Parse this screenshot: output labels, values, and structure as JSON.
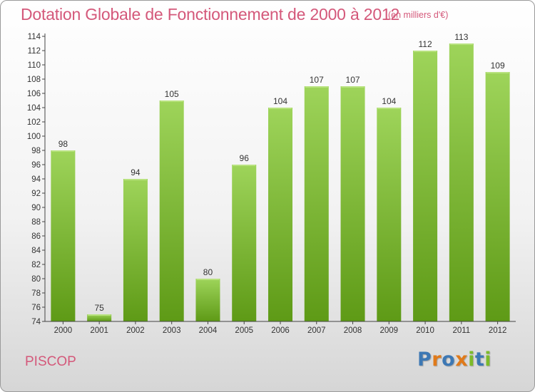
{
  "header": {
    "title": "Dotation Globale de Fonctionnement de 2000 à 2012",
    "unit": "(en milliers d'€)"
  },
  "footer": {
    "commune": "PISCOP",
    "logo_text": "Proxiti"
  },
  "colors": {
    "title": "#d4587a",
    "bar_light": "#9ed45a",
    "bar_dark": "#5e9a16",
    "logo_letters": [
      "#3d78b4",
      "#e07a1a",
      "#3d78b4",
      "#e07a1a",
      "#7dbb2a",
      "#3d78b4",
      "#7dbb2a"
    ]
  },
  "chart_data": {
    "type": "bar",
    "title": "Dotation Globale de Fonctionnement de 2000 à 2012",
    "subtitle": "(en milliers d'€)",
    "xlabel": "",
    "ylabel": "",
    "categories": [
      "2000",
      "2001",
      "2002",
      "2003",
      "2004",
      "2005",
      "2006",
      "2007",
      "2008",
      "2009",
      "2010",
      "2011",
      "2012"
    ],
    "values": [
      98,
      75,
      94,
      105,
      80,
      96,
      104,
      107,
      107,
      104,
      112,
      113,
      109
    ],
    "ylim": [
      74,
      114
    ],
    "yticks": [
      74,
      76,
      78,
      80,
      82,
      84,
      86,
      88,
      90,
      92,
      94,
      96,
      98,
      100,
      102,
      104,
      106,
      108,
      110,
      112,
      114
    ],
    "grid": false,
    "legend": "none"
  }
}
